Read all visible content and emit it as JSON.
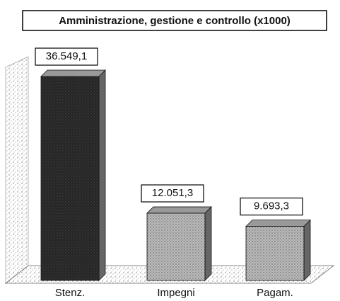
{
  "chart_data": {
    "type": "bar3d",
    "title": "Amministrazione, gestione e controllo (x1000)",
    "categories": [
      "Stenz.",
      "Impegni",
      "Pagam."
    ],
    "values": [
      36549.1,
      12051.3,
      9693.3
    ],
    "value_labels": [
      "36.549,1",
      "12.051,3",
      "9.693,3"
    ],
    "color": "#2a2a2a"
  }
}
